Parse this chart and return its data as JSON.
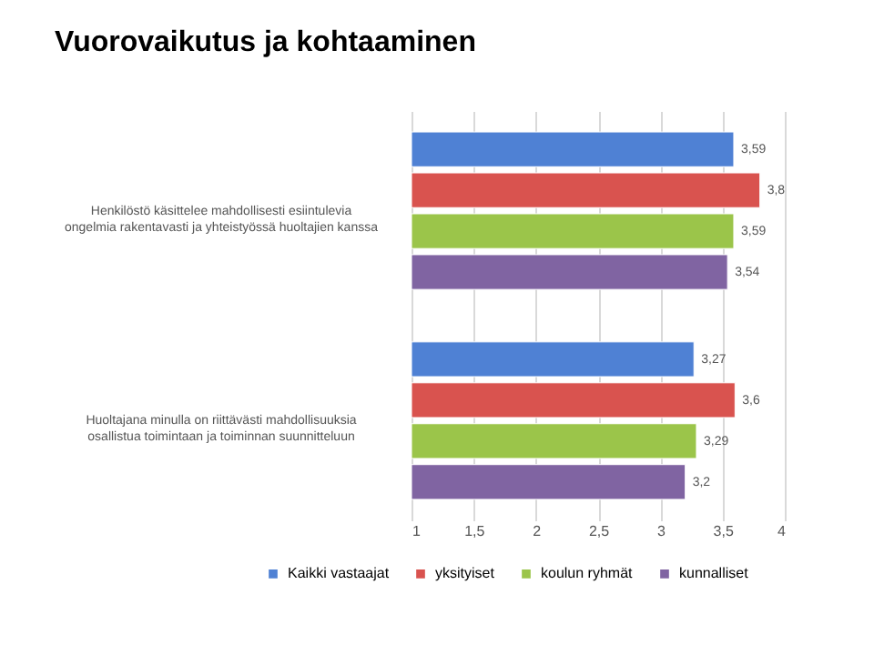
{
  "chart_data": {
    "type": "bar",
    "orientation": "horizontal",
    "title": "Vuorovaikutus ja kohtaaminen",
    "categories": [
      "Henkilöstö käsittelee mahdollisesti esiintulevia ongelmia rakentavasti ja yhteistyössä huoltajien kanssa",
      "Huoltajana minulla on riittävästi mahdollisuuksia osallistua toimintaan ja toiminnan suunnitteluun"
    ],
    "series": [
      {
        "name": "Kaikki vastaajat",
        "color": "#4f81d4",
        "values": [
          3.59,
          3.27
        ],
        "value_labels": [
          "3,59",
          "3,27"
        ]
      },
      {
        "name": "yksityiset",
        "color": "#d9534f",
        "values": [
          3.8,
          3.6
        ],
        "value_labels": [
          "3,8",
          "3,6"
        ]
      },
      {
        "name": "koulun ryhmät",
        "color": "#9bc54a",
        "values": [
          3.59,
          3.29
        ],
        "value_labels": [
          "3,59",
          "3,29"
        ]
      },
      {
        "name": "kunnalliset",
        "color": "#8064a2",
        "values": [
          3.54,
          3.2
        ],
        "value_labels": [
          "3,54",
          "3,2"
        ]
      }
    ],
    "xlim": [
      1,
      4
    ],
    "xticks": [
      1,
      {
        "value": 1.5,
        "label": "1,5"
      },
      2,
      {
        "value": 2.5,
        "label": "2,5"
      },
      3,
      {
        "value": 3.5,
        "label": "3,5"
      },
      4
    ],
    "grid": "x",
    "legend": "bottom"
  }
}
